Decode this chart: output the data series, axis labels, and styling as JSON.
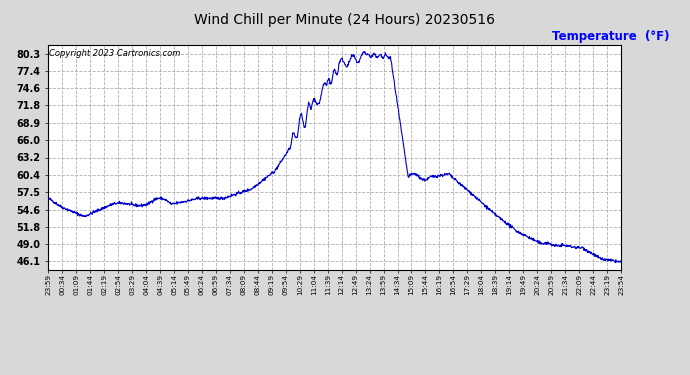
{
  "title": "Wind Chill per Minute (24 Hours) 20230516",
  "ylabel": "Temperature  (°F)",
  "ylabel_color": "blue",
  "copyright_text": "Copyright 2023 Cartronics.com",
  "line_color": "#0000cc",
  "background_color": "#d8d8d8",
  "plot_background": "#ffffff",
  "yticks": [
    46.1,
    49.0,
    51.8,
    54.6,
    57.5,
    60.4,
    63.2,
    66.0,
    68.9,
    71.8,
    74.6,
    77.4,
    80.3
  ],
  "ymin": 44.7,
  "ymax": 81.7,
  "xtick_labels": [
    "23:59",
    "00:34",
    "01:09",
    "01:44",
    "02:19",
    "02:54",
    "03:29",
    "04:04",
    "04:39",
    "05:14",
    "05:49",
    "06:24",
    "06:59",
    "07:34",
    "08:09",
    "08:44",
    "09:19",
    "09:54",
    "10:29",
    "11:04",
    "11:39",
    "12:14",
    "12:49",
    "13:24",
    "13:59",
    "14:34",
    "15:09",
    "15:44",
    "16:19",
    "16:54",
    "17:29",
    "18:04",
    "18:39",
    "19:14",
    "19:49",
    "20:24",
    "20:59",
    "21:34",
    "22:09",
    "22:44",
    "23:19",
    "23:54"
  ],
  "grid_color": "#b0b0b0",
  "grid_style": "--",
  "grid_linewidth": 0.6
}
